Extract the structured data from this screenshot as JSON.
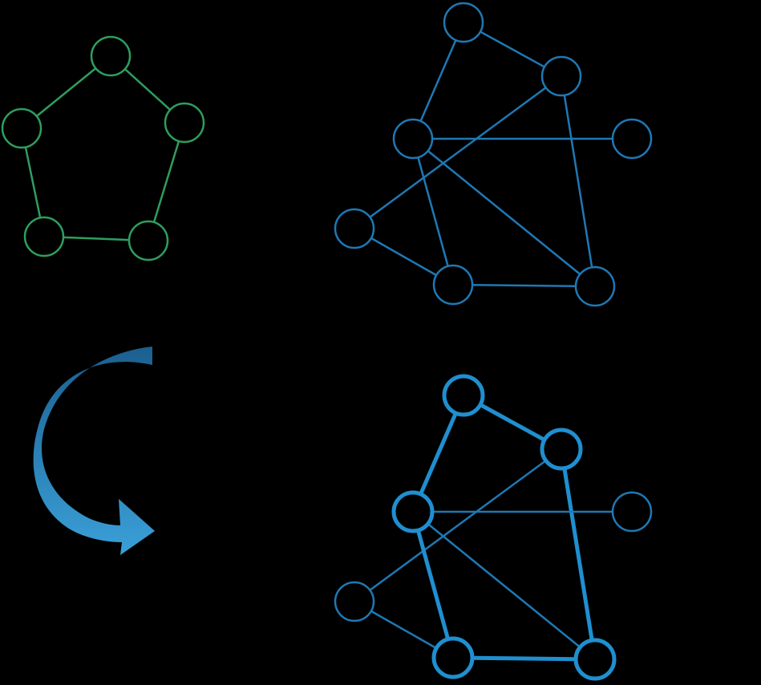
{
  "colors": {
    "background": "#000000",
    "pattern": "#2e9e5e",
    "graph": "#1f78b4",
    "highlight": "#1f8fd0",
    "arrow_light": "#3aa0d8",
    "arrow_dark": "#1b5f8f"
  },
  "pattern_graph": {
    "nodes": [
      "p1",
      "p2",
      "p3",
      "p4",
      "p5"
    ],
    "edges": [
      [
        "p1",
        "p2"
      ],
      [
        "p2",
        "p3"
      ],
      [
        "p3",
        "p4"
      ],
      [
        "p4",
        "p5"
      ],
      [
        "p5",
        "p1"
      ]
    ]
  },
  "target_graph": {
    "nodes": [
      "a",
      "b",
      "c",
      "d",
      "e",
      "f",
      "g"
    ],
    "edges": [
      [
        "a",
        "b"
      ],
      [
        "a",
        "c"
      ],
      [
        "b",
        "e"
      ],
      [
        "b",
        "g"
      ],
      [
        "c",
        "d"
      ],
      [
        "c",
        "f"
      ],
      [
        "c",
        "g"
      ],
      [
        "e",
        "f"
      ],
      [
        "f",
        "g"
      ]
    ]
  },
  "matched_graph": {
    "nodes": [
      "a",
      "b",
      "c",
      "d",
      "e",
      "f",
      "g"
    ],
    "edges": [
      [
        "a",
        "b"
      ],
      [
        "a",
        "c"
      ],
      [
        "b",
        "e"
      ],
      [
        "b",
        "g"
      ],
      [
        "c",
        "d"
      ],
      [
        "c",
        "f"
      ],
      [
        "c",
        "g"
      ],
      [
        "e",
        "f"
      ],
      [
        "f",
        "g"
      ]
    ],
    "highlighted_nodes": [
      "a",
      "b",
      "c",
      "f",
      "g"
    ],
    "highlighted_edges": [
      [
        "a",
        "b"
      ],
      [
        "a",
        "c"
      ],
      [
        "b",
        "g"
      ],
      [
        "c",
        "f"
      ],
      [
        "f",
        "g"
      ]
    ]
  },
  "arrow": {
    "icon": "curved-arrow-icon",
    "direction": "down"
  }
}
